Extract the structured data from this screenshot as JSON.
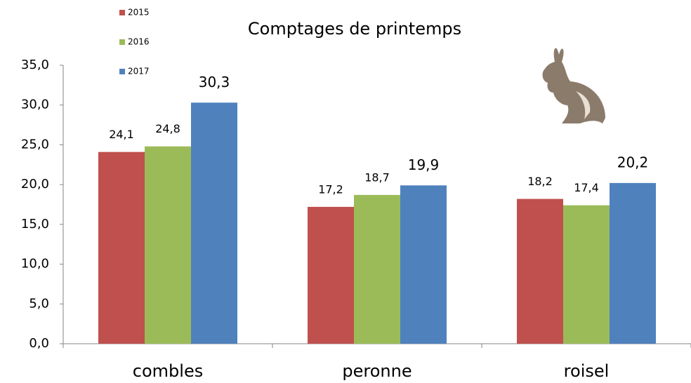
{
  "chart_data": {
    "type": "bar",
    "title": "Comptages de printemps",
    "categories": [
      "combles",
      "peronne",
      "roisel"
    ],
    "series": [
      {
        "name": "2015",
        "color": "#c0504d",
        "values": [
          24.1,
          17.2,
          18.2
        ],
        "value_labels": [
          "24,1",
          "17,2",
          "18,2"
        ]
      },
      {
        "name": "2016",
        "color": "#9bbb59",
        "values": [
          24.8,
          18.7,
          17.4
        ],
        "value_labels": [
          "24,8",
          "18,7",
          "17,4"
        ]
      },
      {
        "name": "2017",
        "color": "#4f81bd",
        "values": [
          30.3,
          19.9,
          20.2
        ],
        "value_labels": [
          "30,3",
          "19,9",
          "20,2"
        ]
      }
    ],
    "ylim": [
      0,
      35
    ],
    "yticks": [
      {
        "value": 0,
        "label": "0,0"
      },
      {
        "value": 5,
        "label": "5,0"
      },
      {
        "value": 10,
        "label": "10,0"
      },
      {
        "value": 15,
        "label": "15,0"
      },
      {
        "value": 20,
        "label": "20,0"
      },
      {
        "value": 25,
        "label": "25,0"
      },
      {
        "value": 30,
        "label": "30,0"
      },
      {
        "value": 35,
        "label": "35,0"
      }
    ],
    "grid": false
  }
}
